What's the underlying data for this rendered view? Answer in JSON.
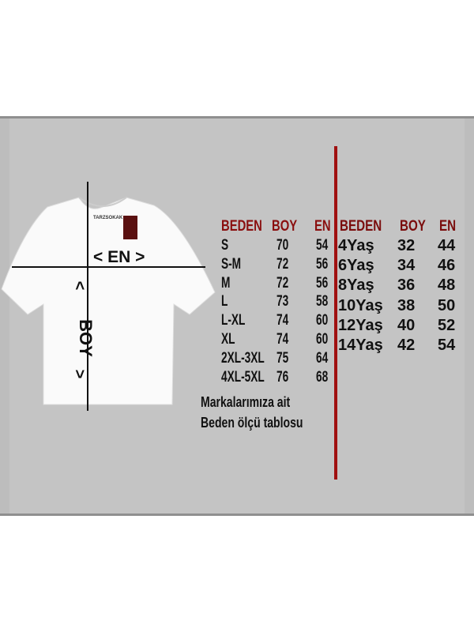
{
  "brand_tag": "TARZSOKAK",
  "measure_labels": {
    "width": "EN",
    "length": "BOY"
  },
  "adult_table": {
    "headers": [
      "BEDEN",
      "BOY",
      "EN"
    ],
    "rows": [
      [
        "S",
        "70",
        "54"
      ],
      [
        "S-M",
        "72",
        "56"
      ],
      [
        "M",
        "72",
        "56"
      ],
      [
        "L",
        "73",
        "58"
      ],
      [
        "L-XL",
        "74",
        "60"
      ],
      [
        "XL",
        "74",
        "60"
      ],
      [
        "2XL-3XL",
        "75",
        "64"
      ],
      [
        "4XL-5XL",
        "76",
        "68"
      ]
    ]
  },
  "kids_table": {
    "headers": [
      "BEDEN",
      "BOY",
      "EN"
    ],
    "rows": [
      [
        "4Yaş",
        "32",
        "44"
      ],
      [
        "6Yaş",
        "34",
        "46"
      ],
      [
        "8Yaş",
        "36",
        "48"
      ],
      [
        "10Yaş",
        "38",
        "50"
      ],
      [
        "12Yaş",
        "40",
        "52"
      ],
      [
        "14Yaş",
        "42",
        "54"
      ]
    ]
  },
  "note": {
    "line1": "Markalarımıza ait",
    "line2": "Beden ölçü tablosu"
  },
  "colors": {
    "header": "#8a0f0f",
    "divider": "#a01010",
    "panel": "#c4c4c4"
  }
}
